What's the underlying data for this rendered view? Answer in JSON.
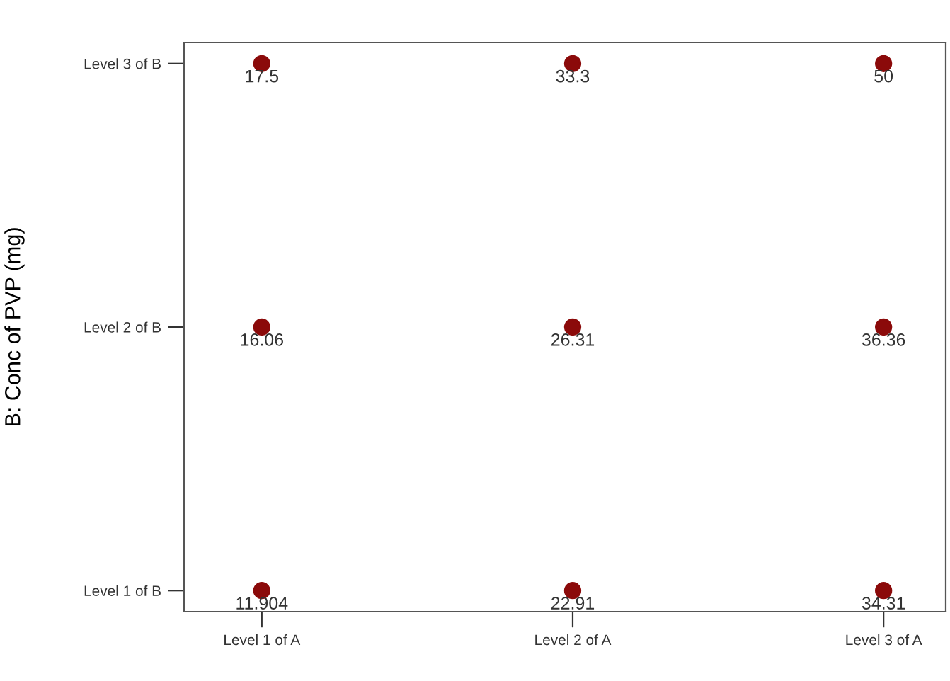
{
  "chart_data": {
    "type": "heatmap",
    "ylabel": "B: Conc of PVP (mg)",
    "categories": [
      "Level 1 of A",
      "Level 2 of A",
      "Level 3 of A"
    ],
    "y_categories": [
      "Level 3 of B",
      "Level 2 of B",
      "Level 1 of B"
    ],
    "cells": [
      [
        17.5,
        33.3,
        50
      ],
      [
        16.06,
        26.31,
        36.36
      ],
      [
        11.904,
        22.91,
        34.31
      ]
    ],
    "color": "#8b0a0a",
    "data_labels": true
  }
}
